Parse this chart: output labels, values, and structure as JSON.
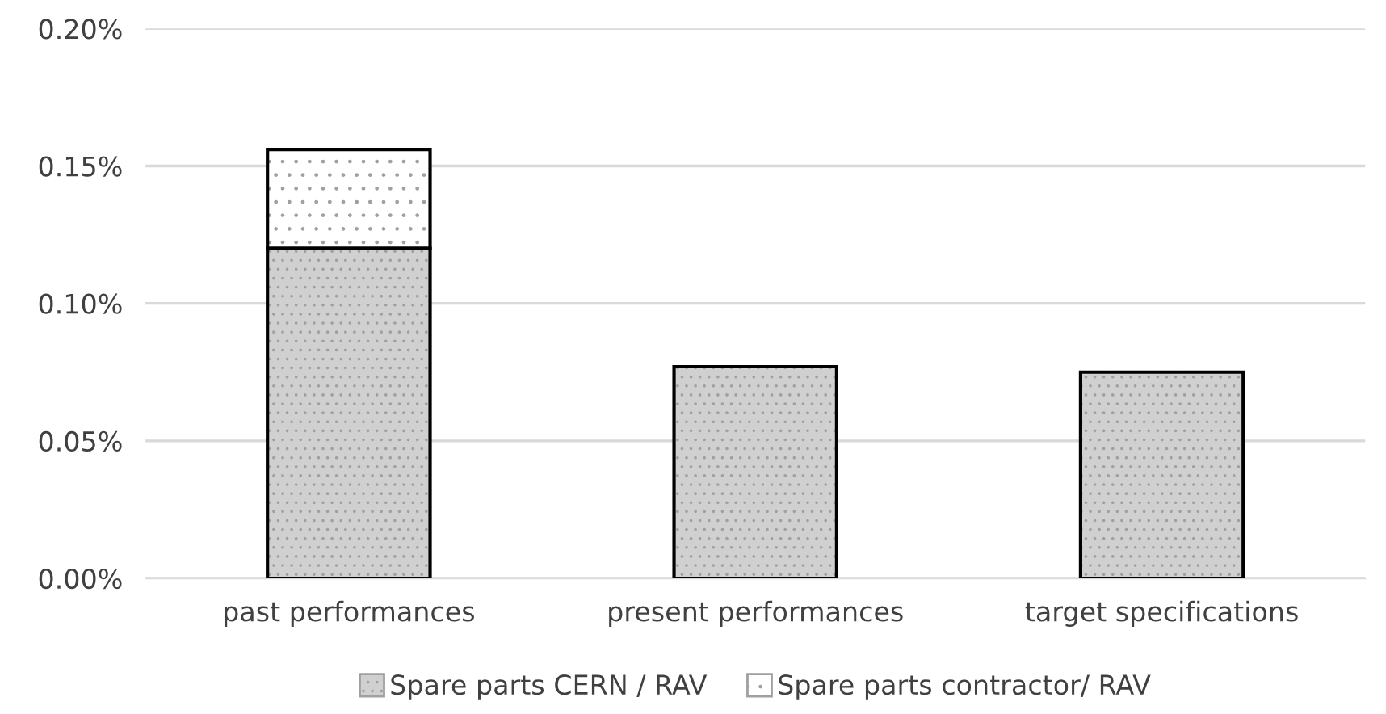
{
  "chart_data": {
    "type": "bar",
    "stacked": true,
    "categories": [
      "past performances",
      "present performances",
      "target specifications"
    ],
    "series": [
      {
        "name": "Spare parts CERN / RAV",
        "color": "#d0d0d0",
        "values": [
          0.12,
          0.077,
          0.075
        ]
      },
      {
        "name": "Spare parts contractor/ RAV",
        "color": "#ffffff",
        "values": [
          0.036,
          null,
          null
        ]
      }
    ],
    "ylim": [
      0,
      0.2
    ],
    "yticks": [
      {
        "value": 0,
        "label": "0.00%"
      },
      {
        "value": 0.05,
        "label": "0.05%"
      },
      {
        "value": 0.1,
        "label": "0.10%"
      },
      {
        "value": 0.15,
        "label": "0.15%"
      },
      {
        "value": 0.2,
        "label": "0.20%"
      }
    ],
    "grid": "y",
    "legend": "bottom"
  }
}
